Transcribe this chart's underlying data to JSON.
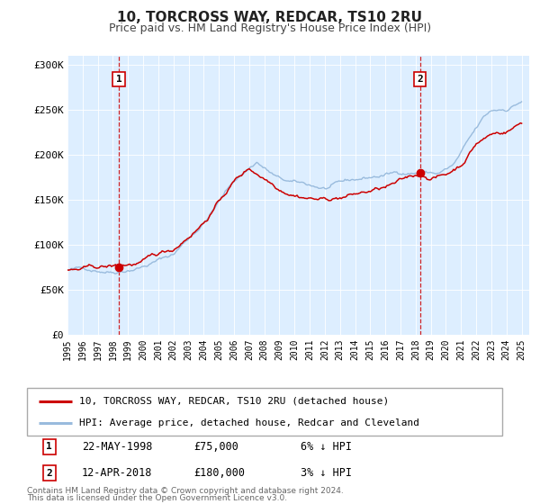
{
  "title": "10, TORCROSS WAY, REDCAR, TS10 2RU",
  "subtitle": "Price paid vs. HM Land Registry's House Price Index (HPI)",
  "ylim": [
    0,
    310000
  ],
  "xlim_start": 1995.0,
  "xlim_end": 2025.5,
  "yticks": [
    0,
    50000,
    100000,
    150000,
    200000,
    250000,
    300000
  ],
  "ytick_labels": [
    "£0",
    "£50K",
    "£100K",
    "£150K",
    "£200K",
    "£250K",
    "£300K"
  ],
  "xtick_years": [
    1995,
    1996,
    1997,
    1998,
    1999,
    2000,
    2001,
    2002,
    2003,
    2004,
    2005,
    2006,
    2007,
    2008,
    2009,
    2010,
    2011,
    2012,
    2013,
    2014,
    2015,
    2016,
    2017,
    2018,
    2019,
    2020,
    2021,
    2022,
    2023,
    2024,
    2025
  ],
  "sale1_x": 1998.39,
  "sale1_y": 75000,
  "sale1_label": "1",
  "sale1_date": "22-MAY-1998",
  "sale1_price": "£75,000",
  "sale1_hpi": "6% ↓ HPI",
  "sale2_x": 2018.28,
  "sale2_y": 180000,
  "sale2_label": "2",
  "sale2_date": "12-APR-2018",
  "sale2_price": "£180,000",
  "sale2_hpi": "3% ↓ HPI",
  "red_line_color": "#cc0000",
  "blue_line_color": "#99bbdd",
  "bg_color": "#ddeeff",
  "sale_dot_color": "#cc0000",
  "sale_vline_color": "#cc0000",
  "legend_label_red": "10, TORCROSS WAY, REDCAR, TS10 2RU (detached house)",
  "legend_label_blue": "HPI: Average price, detached house, Redcar and Cleveland",
  "footer1": "Contains HM Land Registry data © Crown copyright and database right 2024.",
  "footer2": "This data is licensed under the Open Government Licence v3.0."
}
